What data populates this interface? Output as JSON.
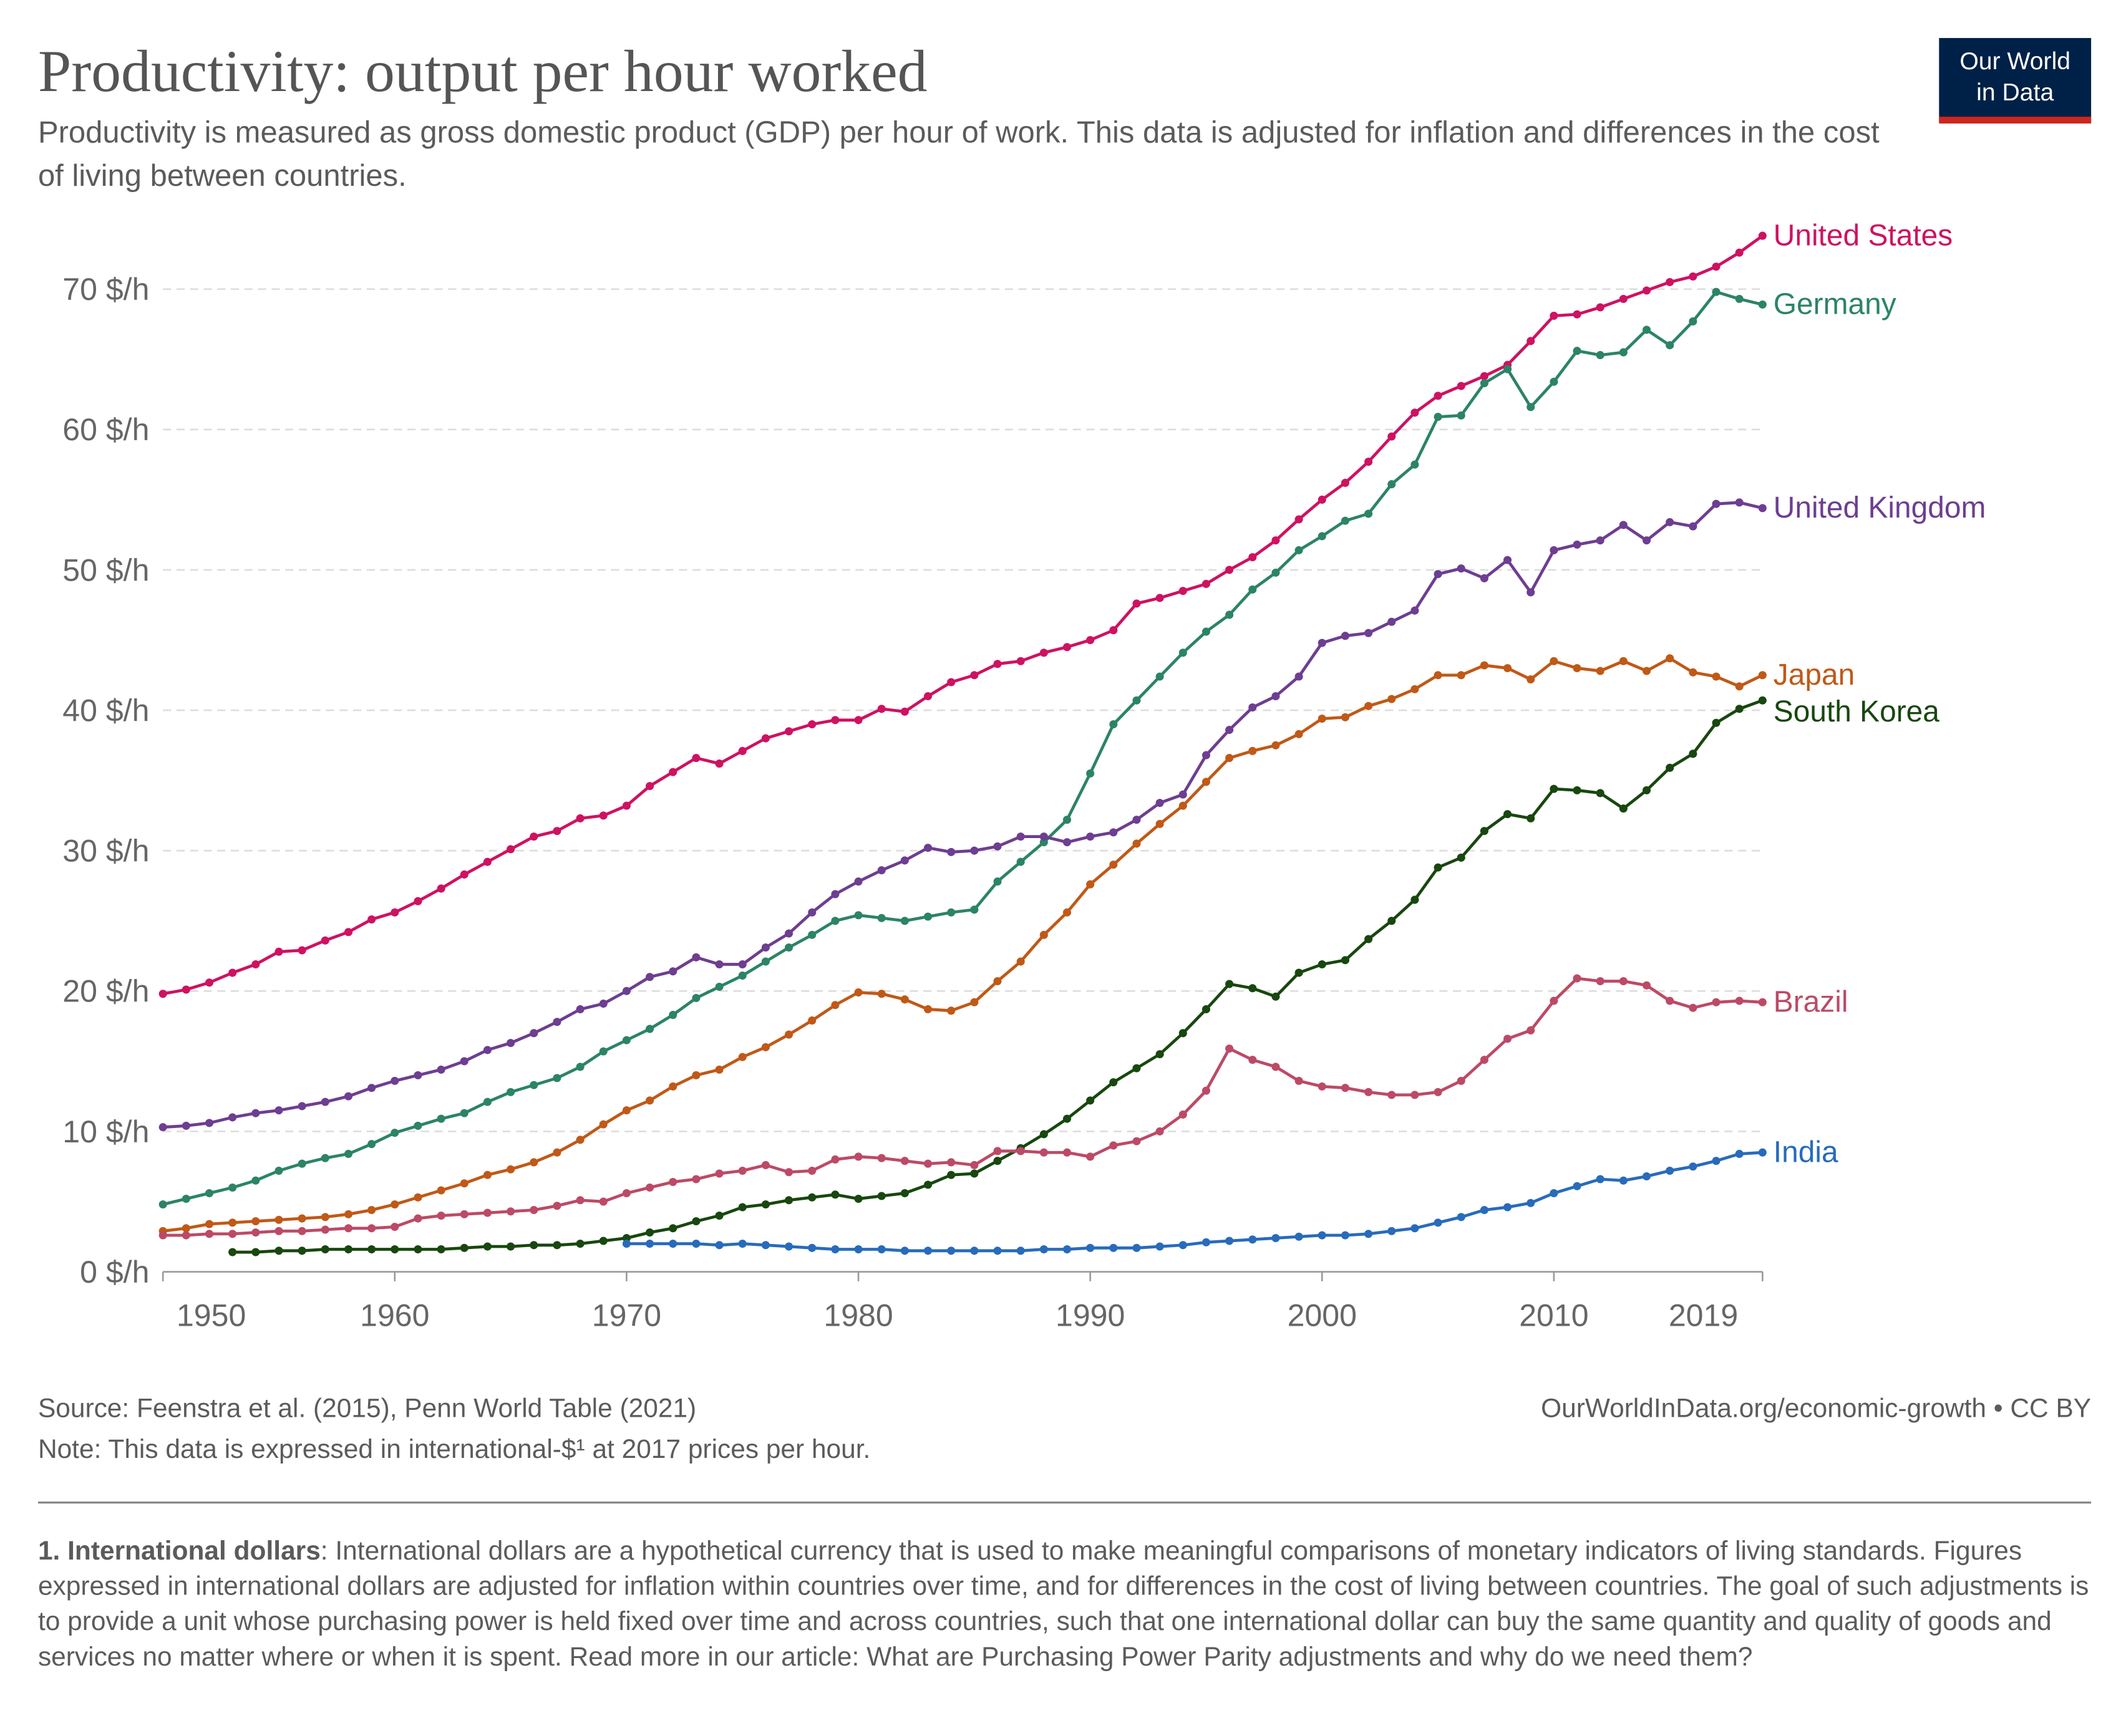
{
  "chart_data": {
    "type": "line",
    "title": "Productivity: output per hour worked",
    "subtitle": "Productivity is measured as gross domestic product (GDP) per hour of work. This data is adjusted for inflation and differences in the cost of living between countries.",
    "logo": [
      "Our World",
      "in Data"
    ],
    "source": "Source: Feenstra et al. (2015), Penn World Table (2021)",
    "note": "Note: This data is expressed in international-$¹ at 2017 prices per hour.",
    "url": "OurWorldInData.org/economic-growth • CC BY",
    "footnote_title": "1. International dollars",
    "footnote_text": ": International dollars are a hypothetical currency that is used to make meaningful comparisons of monetary indicators of living standards. Figures expressed in international dollars are adjusted for inflation within countries over time, and for differences in the cost of living between countries. The goal of such adjustments is to provide a unit whose purchasing power is held fixed over time and across countries, such that one international dollar can buy the same quantity and quality of goods and services no matter where or when it is spent. Read more in our article: What are Purchasing Power Parity adjustments and why do we need them?",
    "x": [
      1950,
      1951,
      1952,
      1953,
      1954,
      1955,
      1956,
      1957,
      1958,
      1959,
      1960,
      1961,
      1962,
      1963,
      1964,
      1965,
      1966,
      1967,
      1968,
      1969,
      1970,
      1971,
      1972,
      1973,
      1974,
      1975,
      1976,
      1977,
      1978,
      1979,
      1980,
      1981,
      1982,
      1983,
      1984,
      1985,
      1986,
      1987,
      1988,
      1989,
      1990,
      1991,
      1992,
      1993,
      1994,
      1995,
      1996,
      1997,
      1998,
      1999,
      2000,
      2001,
      2002,
      2003,
      2004,
      2005,
      2006,
      2007,
      2008,
      2009,
      2010,
      2011,
      2012,
      2013,
      2014,
      2015,
      2016,
      2017,
      2018,
      2019
    ],
    "xlim": [
      1950,
      2019
    ],
    "xticks": [
      1950,
      1960,
      1970,
      1980,
      1990,
      2000,
      2010,
      2019
    ],
    "ylim": [
      0,
      73.8
    ],
    "yticks": [
      {
        "value": 0,
        "label": "0 $/h"
      },
      {
        "value": 10,
        "label": "10 $/h"
      },
      {
        "value": 20,
        "label": "20 $/h"
      },
      {
        "value": 30,
        "label": "30 $/h"
      },
      {
        "value": 40,
        "label": "40 $/h"
      },
      {
        "value": 50,
        "label": "50 $/h"
      },
      {
        "value": 60,
        "label": "60 $/h"
      },
      {
        "value": 70,
        "label": "70 $/h"
      }
    ],
    "grid": true,
    "series": [
      {
        "name": "United States",
        "color": "#ce1261",
        "values": [
          19.8,
          20.1,
          20.6,
          21.3,
          21.9,
          22.8,
          22.9,
          23.6,
          24.2,
          25.1,
          25.6,
          26.4,
          27.3,
          28.3,
          29.2,
          30.1,
          31.0,
          31.4,
          32.3,
          32.5,
          33.2,
          34.6,
          35.6,
          36.6,
          36.2,
          37.1,
          38.0,
          38.5,
          39.0,
          39.3,
          39.3,
          40.1,
          39.9,
          41.0,
          42.0,
          42.5,
          43.3,
          43.5,
          44.1,
          44.5,
          45.0,
          45.7,
          47.6,
          48.0,
          48.5,
          49.0,
          50.0,
          50.9,
          52.1,
          53.6,
          55.0,
          56.2,
          57.7,
          59.5,
          61.2,
          62.4,
          63.1,
          63.8,
          64.6,
          66.3,
          68.1,
          68.2,
          68.7,
          69.3,
          69.9,
          70.5,
          70.9,
          71.6,
          72.6,
          73.8
        ]
      },
      {
        "name": "Germany",
        "color": "#2c8465",
        "values": [
          4.8,
          5.2,
          5.6,
          6.0,
          6.5,
          7.2,
          7.7,
          8.1,
          8.4,
          9.1,
          9.9,
          10.4,
          10.9,
          11.3,
          12.1,
          12.8,
          13.3,
          13.8,
          14.6,
          15.7,
          16.5,
          17.3,
          18.3,
          19.5,
          20.3,
          21.1,
          22.1,
          23.1,
          24.0,
          25.0,
          25.4,
          25.2,
          25.0,
          25.3,
          25.6,
          25.8,
          27.8,
          29.2,
          30.6,
          32.2,
          35.5,
          39.0,
          40.7,
          42.4,
          44.1,
          45.6,
          46.8,
          48.6,
          49.8,
          51.4,
          52.4,
          53.5,
          54.0,
          56.1,
          57.5,
          60.9,
          61.0,
          63.3,
          64.3,
          61.6,
          63.4,
          65.6,
          65.3,
          65.5,
          67.1,
          66.0,
          67.7,
          69.8,
          69.3,
          68.9
        ]
      },
      {
        "name": "United Kingdom",
        "color": "#6d3e91",
        "values": [
          10.3,
          10.4,
          10.6,
          11.0,
          11.3,
          11.5,
          11.8,
          12.1,
          12.5,
          13.1,
          13.6,
          14.0,
          14.4,
          15.0,
          15.8,
          16.3,
          17.0,
          17.8,
          18.7,
          19.1,
          20.0,
          21.0,
          21.4,
          22.4,
          21.9,
          21.9,
          23.1,
          24.1,
          25.6,
          26.9,
          27.8,
          28.6,
          29.3,
          30.2,
          29.9,
          30.0,
          30.3,
          31.0,
          31.0,
          30.6,
          31.0,
          31.3,
          32.2,
          33.4,
          34.0,
          36.8,
          38.6,
          40.2,
          41.0,
          42.4,
          44.8,
          45.3,
          45.5,
          46.3,
          47.1,
          49.7,
          50.1,
          49.4,
          50.7,
          48.4,
          51.4,
          51.8,
          52.1,
          53.2,
          52.1,
          53.4,
          53.1,
          54.7,
          54.8,
          54.4
        ]
      },
      {
        "name": "Japan",
        "color": "#c05917",
        "values": [
          2.9,
          3.1,
          3.4,
          3.5,
          3.6,
          3.7,
          3.8,
          3.9,
          4.1,
          4.4,
          4.8,
          5.3,
          5.8,
          6.3,
          6.9,
          7.3,
          7.8,
          8.5,
          9.4,
          10.5,
          11.5,
          12.2,
          13.2,
          14.0,
          14.4,
          15.3,
          16.0,
          16.9,
          17.9,
          19.0,
          19.9,
          19.8,
          19.4,
          18.7,
          18.6,
          19.2,
          20.7,
          22.1,
          24.0,
          25.6,
          27.6,
          29.0,
          30.5,
          31.9,
          33.2,
          34.9,
          36.6,
          37.1,
          37.5,
          38.3,
          39.4,
          39.5,
          40.3,
          40.8,
          41.5,
          42.5,
          42.5,
          43.2,
          43.0,
          42.2,
          43.5,
          43.0,
          42.8,
          43.5,
          42.8,
          43.7,
          42.7,
          42.4,
          41.7,
          42.5
        ]
      },
      {
        "name": "South Korea",
        "color": "#18470f",
        "values": [
          null,
          null,
          null,
          1.4,
          1.4,
          1.5,
          1.5,
          1.6,
          1.6,
          1.6,
          1.6,
          1.6,
          1.6,
          1.7,
          1.8,
          1.8,
          1.9,
          1.9,
          2.0,
          2.2,
          2.4,
          2.8,
          3.1,
          3.6,
          4.0,
          4.6,
          4.8,
          5.1,
          5.3,
          5.5,
          5.2,
          5.4,
          5.6,
          6.2,
          6.9,
          7.0,
          7.9,
          8.8,
          9.8,
          10.9,
          12.2,
          13.5,
          14.5,
          15.5,
          17.0,
          18.7,
          20.5,
          20.2,
          19.6,
          21.3,
          21.9,
          22.2,
          23.7,
          25.0,
          26.5,
          28.8,
          29.5,
          31.4,
          32.6,
          32.3,
          34.4,
          34.3,
          34.1,
          33.0,
          34.3,
          35.9,
          36.9,
          39.1,
          40.1,
          40.7
        ]
      },
      {
        "name": "Brazil",
        "color": "#bc4a66",
        "values": [
          2.6,
          2.6,
          2.7,
          2.7,
          2.8,
          2.9,
          2.9,
          3.0,
          3.1,
          3.1,
          3.2,
          3.8,
          4.0,
          4.1,
          4.2,
          4.3,
          4.4,
          4.7,
          5.1,
          5.0,
          5.6,
          6.0,
          6.4,
          6.6,
          7.0,
          7.2,
          7.6,
          7.1,
          7.2,
          8.0,
          8.2,
          8.1,
          7.9,
          7.7,
          7.8,
          7.6,
          8.6,
          8.6,
          8.5,
          8.5,
          8.2,
          9.0,
          9.3,
          10.0,
          11.2,
          12.9,
          15.9,
          15.1,
          14.6,
          13.6,
          13.2,
          13.1,
          12.8,
          12.6,
          12.6,
          12.8,
          13.6,
          15.1,
          16.6,
          17.2,
          19.3,
          20.9,
          20.7,
          20.7,
          20.4,
          19.3,
          18.8,
          19.2,
          19.3,
          19.2
        ]
      },
      {
        "name": "India",
        "color": "#286bbb",
        "values": [
          null,
          null,
          null,
          null,
          null,
          null,
          null,
          null,
          null,
          null,
          null,
          null,
          null,
          null,
          null,
          null,
          null,
          null,
          null,
          null,
          2.0,
          2.0,
          2.0,
          2.0,
          1.9,
          2.0,
          1.9,
          1.8,
          1.7,
          1.6,
          1.6,
          1.6,
          1.5,
          1.5,
          1.5,
          1.5,
          1.5,
          1.5,
          1.6,
          1.6,
          1.7,
          1.7,
          1.7,
          1.8,
          1.9,
          2.1,
          2.2,
          2.3,
          2.4,
          2.5,
          2.6,
          2.6,
          2.7,
          2.9,
          3.1,
          3.5,
          3.9,
          4.4,
          4.6,
          4.9,
          5.6,
          6.1,
          6.6,
          6.5,
          6.8,
          7.2,
          7.5,
          7.9,
          8.4,
          8.5
        ]
      }
    ]
  }
}
